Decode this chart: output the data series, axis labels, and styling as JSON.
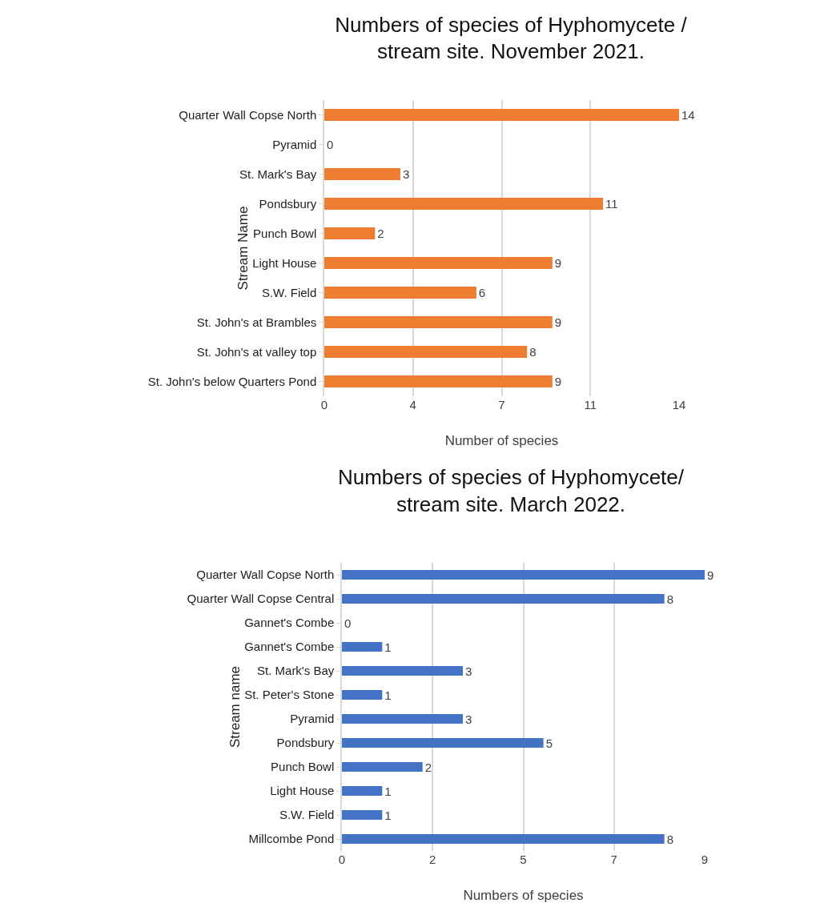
{
  "chart_data": [
    {
      "type": "bar",
      "orientation": "horizontal",
      "title": "Numbers of species of Hyphomycete /\nstream site. November 2021.",
      "xlabel": "Number of species",
      "ylabel": "Stream Name",
      "categories": [
        "Quarter Wall Copse North",
        "Pyramid",
        "St. Mark's Bay",
        "Pondsbury",
        "Punch Bowl",
        "Light House",
        "S.W. Field",
        "St. John's at Brambles",
        "St. John's at valley top",
        "St. John's below Quarters Pond"
      ],
      "values": [
        14,
        0,
        3,
        11,
        2,
        9,
        6,
        9,
        8,
        9
      ],
      "color": "#ed7d31",
      "xlim": [
        0,
        14
      ],
      "xticks": [
        0,
        {
          "value": 3.5,
          "label": "4"
        },
        7,
        {
          "value": 10.5,
          "label": "11"
        },
        14
      ],
      "grid": "x",
      "data_labels": true,
      "legend": false
    },
    {
      "type": "bar",
      "orientation": "horizontal",
      "title": "Numbers of species of Hyphomycete/\nstream site. March 2022.",
      "xlabel": "Numbers of species",
      "ylabel": "Stream name",
      "categories": [
        "Quarter Wall Copse North",
        "Quarter Wall Copse Central",
        "Gannet's Combe",
        "Gannet's Combe",
        "St. Mark's Bay",
        "St. Peter's Stone",
        "Pyramid",
        "Pondsbury",
        "Punch Bowl",
        "Light House",
        "S.W. Field",
        "Millcombe Pond"
      ],
      "values": [
        9,
        8,
        0,
        1,
        3,
        1,
        3,
        5,
        2,
        1,
        1,
        8
      ],
      "color": "#4472c4",
      "xlim": [
        0,
        9
      ],
      "xticks": [
        0,
        {
          "value": 2.25,
          "label": "2"
        },
        {
          "value": 4.5,
          "label": "5"
        },
        {
          "value": 6.75,
          "label": "7"
        },
        9
      ],
      "grid": "x",
      "data_labels": true,
      "legend": false
    }
  ]
}
